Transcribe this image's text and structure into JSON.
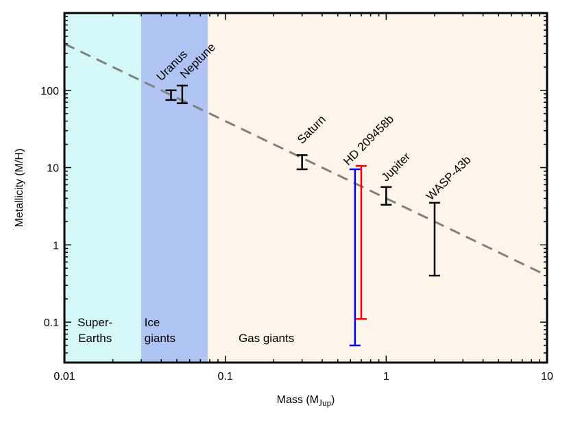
{
  "chart_data": {
    "type": "scatter",
    "xlabel": "Mass (M",
    "xlabel_sub": "Jup",
    "xlabel_close": ")",
    "ylabel": "Metallicity (M/H)",
    "xlim": [
      0.01,
      10
    ],
    "ylim": [
      0.03,
      1000
    ],
    "xscale": "log",
    "yscale": "log",
    "x_ticks": [
      {
        "value": 0.01,
        "label": "0.01"
      },
      {
        "value": 0.1,
        "label": "0.1"
      },
      {
        "value": 1,
        "label": "1"
      },
      {
        "value": 10,
        "label": "10"
      }
    ],
    "y_ticks": [
      {
        "value": 0.1,
        "label": "0.1"
      },
      {
        "value": 1,
        "label": "1"
      },
      {
        "value": 10,
        "label": "10"
      },
      {
        "value": 100,
        "label": "100"
      }
    ],
    "regions": [
      {
        "name": "Super-Earths",
        "lines": [
          "Super-",
          "Earths"
        ],
        "x_from": 0.01,
        "x_to": 0.03,
        "color": "#d4f8f8"
      },
      {
        "name": "Ice giants",
        "lines": [
          "Ice",
          "giants"
        ],
        "x_from": 0.03,
        "x_to": 0.078,
        "color": "#b0c4f4"
      },
      {
        "name": "Gas giants",
        "lines": [
          "Gas giants"
        ],
        "x_from": 0.078,
        "x_to": 10,
        "color": "#fdf4ea"
      }
    ],
    "trend_line": {
      "x": [
        0.01,
        10
      ],
      "y": [
        400,
        0.4
      ],
      "style": "dashed",
      "color": "#808080"
    },
    "points": [
      {
        "name": "Uranus",
        "x": 0.046,
        "y_low": 75,
        "y_high": 100,
        "color": "#000000"
      },
      {
        "name": "Neptune",
        "x": 0.054,
        "y_low": 68,
        "y_high": 115,
        "color": "#000000"
      },
      {
        "name": "Saturn",
        "x": 0.3,
        "y_low": 9.5,
        "y_high": 14.5,
        "color": "#000000"
      },
      {
        "name": "HD 209458b",
        "x": 0.64,
        "y_low": 0.05,
        "y_high": 9.5,
        "color": "#0000ff"
      },
      {
        "name": "HD 209458b",
        "x": 0.7,
        "y_low": 0.11,
        "y_high": 10.5,
        "color": "#ff0000"
      },
      {
        "name": "Jupiter",
        "x": 1.0,
        "y_low": 3.3,
        "y_high": 5.6,
        "color": "#000000"
      },
      {
        "name": "WASP-43b",
        "x": 2.0,
        "y_low": 0.4,
        "y_high": 3.5,
        "color": "#000000"
      }
    ],
    "annotations": [
      {
        "text": "Uranus",
        "x": 0.04,
        "y": 130
      },
      {
        "text": "Neptune",
        "x": 0.056,
        "y": 140
      },
      {
        "text": "Saturn",
        "x": 0.3,
        "y": 20
      },
      {
        "text": "HD 209458b",
        "x": 0.58,
        "y": 10.5
      },
      {
        "text": "Jupiter",
        "x": 1.0,
        "y": 6.5
      },
      {
        "text": "WASP-43b",
        "x": 1.9,
        "y": 3.7
      }
    ]
  }
}
